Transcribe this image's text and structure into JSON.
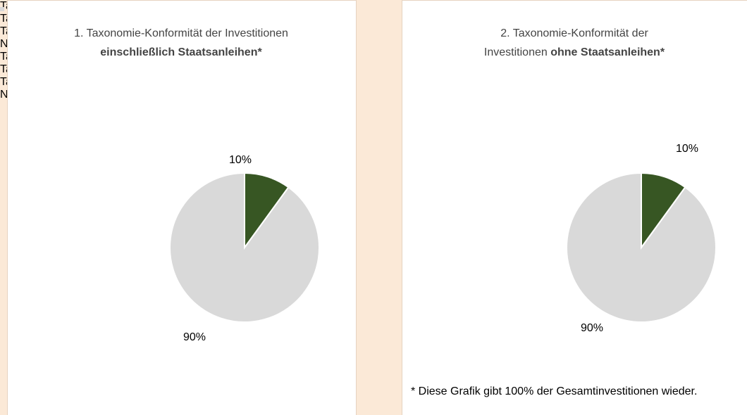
{
  "chart_data": [
    {
      "type": "pie",
      "title": [
        [
          {
            "text": "1. Taxonomie-Konformität der Investitionen"
          }
        ],
        [
          {
            "text": "einschließlich Staatsanleihen*",
            "bold": true
          }
        ]
      ],
      "categories": [
        "Taxonomiekonform: Fossiles Gas",
        "Taxonomiekonform: Kernenergie",
        "Taxonomiekonform: (ohne fossiles Gas und Kernenergie)",
        "Nicht taxonomiekonform"
      ],
      "values": [
        0,
        0,
        10,
        90
      ],
      "value_labels": [
        null,
        null,
        "10%",
        "90%"
      ],
      "colors": [
        "#c5e0b4",
        "#70ad47",
        "#375623",
        "#d9d9d9"
      ]
    },
    {
      "type": "pie",
      "title": [
        [
          {
            "text": "2. Taxonomie-Konformität der"
          }
        ],
        [
          {
            "text": "Investitionen"
          },
          {
            "text": "ohne Staatsanleihen*",
            "bold": true
          }
        ]
      ],
      "categories": [
        "Taxonomiekonform: Fossiles Gas",
        "Taxonomiekonform: Kernenergie",
        "Taxonomiekonform: (ohne fossiles Gas und Kernenergie)",
        "Nicht taxonomiekonform"
      ],
      "values": [
        0,
        0,
        10,
        90
      ],
      "value_labels": [
        null,
        null,
        "10%",
        "90%"
      ],
      "colors": [
        "#c5e0b4",
        "#70ad47",
        "#375623",
        "#d9d9d9"
      ],
      "note": "* Diese Grafik gibt 100% der Gesamtinvestitionen wieder."
    }
  ]
}
